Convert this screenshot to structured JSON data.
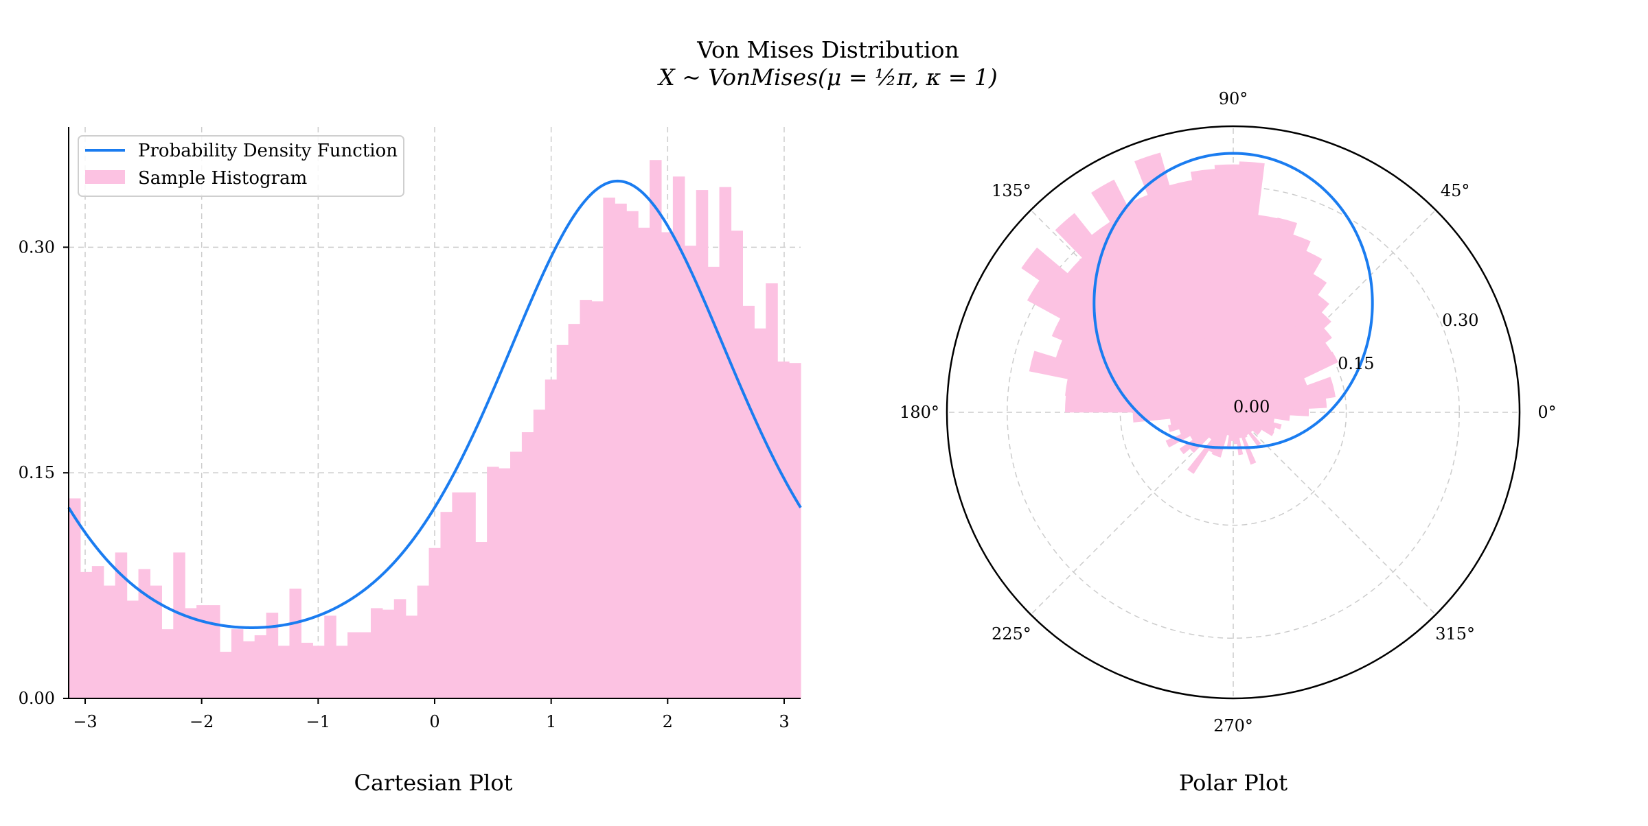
{
  "figure": {
    "title": "Von Mises Distribution",
    "subtitle": "X ~ VonMises(μ = ½π, κ = 1)"
  },
  "colors": {
    "pdf_line": "#1a7cf0",
    "histogram": "#fcc2e2",
    "grid": "#cccccc",
    "axes": "#000000"
  },
  "chart_data": [
    {
      "type": "bar",
      "name": "Cartesian Plot",
      "xlabel": "Cartesian Plot",
      "xlim": [
        -3.14159,
        3.14159
      ],
      "ylim": [
        0,
        0.38
      ],
      "xticks": [
        -3,
        -2,
        -1,
        0,
        1,
        2,
        3
      ],
      "xtick_labels": [
        "−3",
        "−2",
        "−1",
        "0",
        "1",
        "2",
        "3"
      ],
      "yticks": [
        0.0,
        0.15,
        0.3
      ],
      "ytick_labels": [
        "0.00",
        "0.15",
        "0.30"
      ],
      "grid": true,
      "legend": {
        "placement": "top-left",
        "entries": [
          "Probability Density Function",
          "Sample Histogram"
        ]
      },
      "histogram": {
        "name": "Sample Histogram",
        "bins": 63,
        "bin_range": [
          -3.14159,
          3.14159
        ],
        "values": [
          0.133,
          0.084,
          0.088,
          0.075,
          0.097,
          0.065,
          0.086,
          0.075,
          0.046,
          0.097,
          0.06,
          0.062,
          0.062,
          0.031,
          0.046,
          0.038,
          0.042,
          0.057,
          0.035,
          0.073,
          0.037,
          0.035,
          0.055,
          0.035,
          0.044,
          0.044,
          0.06,
          0.059,
          0.066,
          0.055,
          0.075,
          0.1,
          0.124,
          0.137,
          0.137,
          0.104,
          0.154,
          0.153,
          0.164,
          0.177,
          0.192,
          0.212,
          0.235,
          0.249,
          0.265,
          0.264,
          0.333,
          0.329,
          0.324,
          0.313,
          0.358,
          0.31,
          0.347,
          0.301,
          0.338,
          0.287,
          0.34,
          0.311,
          0.261,
          0.246,
          0.276,
          0.224,
          0.223
        ]
      },
      "pdf": {
        "name": "Probability Density Function",
        "function": "von_mises",
        "mu": 1.5708,
        "kappa": 1,
        "peak": 0.344,
        "minimum": 0.047
      }
    },
    {
      "type": "polar",
      "name": "Polar Plot",
      "xlabel": "Polar Plot",
      "rlim": [
        0,
        0.38
      ],
      "rticks": [
        0.0,
        0.15,
        0.3
      ],
      "rtick_labels": [
        "0.00",
        "0.15",
        "0.30"
      ],
      "theta_labels": [
        "0°",
        "45°",
        "90°",
        "135°",
        "180°",
        "225°",
        "270°",
        "315°"
      ],
      "grid": true
    }
  ]
}
